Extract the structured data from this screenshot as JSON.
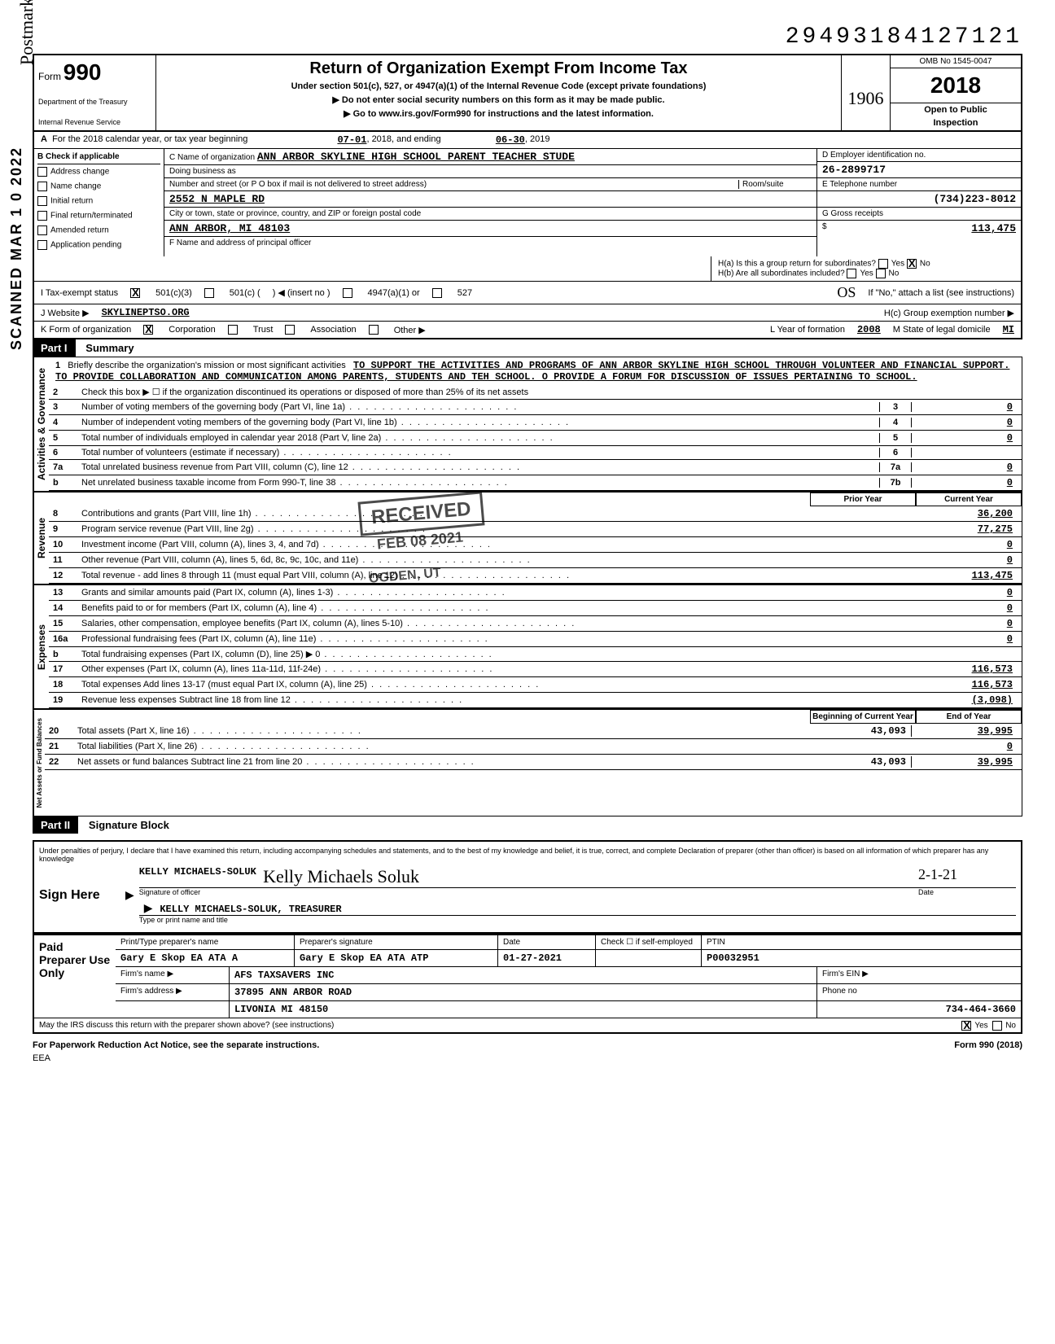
{
  "header": {
    "dln": "29493184127121",
    "form_label": "Form",
    "form_number": "990",
    "dept1": "Department of the Treasury",
    "dept2": "Internal Revenue Service",
    "main_title": "Return of Organization Exempt From Income Tax",
    "sub1": "Under section 501(c), 527, or 4947(a)(1) of the Internal Revenue Code (except private foundations)",
    "sub2": "▶ Do not enter social security numbers on this form as it may be made public.",
    "sub3": "▶ Go to www.irs.gov/Form990 for instructions and the latest information.",
    "omb": "OMB No 1545-0047",
    "year": "2018",
    "open1": "Open to Public",
    "open2": "Inspection",
    "hw_1906": "1906"
  },
  "row_a": {
    "label": "A",
    "text1": "For the 2018 calendar year, or tax year beginning",
    "begin": "07-01",
    "text2": ", 2018, and ending",
    "end": "06-30",
    "text3": ", 2019"
  },
  "col_b": {
    "hdr": "B    Check if applicable",
    "items": [
      "Address change",
      "Name change",
      "Initial return",
      "Final return/terminated",
      "Amended return",
      "Application pending"
    ]
  },
  "col_c": {
    "name_label": "C  Name of organization",
    "name": "ANN ARBOR SKYLINE HIGH SCHOOL PARENT TEACHER STUDE",
    "dba_label": "Doing business as",
    "addr_label": "Number and street (or P O box if mail is not delivered to street address)",
    "room_label": "Room/suite",
    "addr": "2552 N MAPLE RD",
    "city_label": "City or town, state or province, country, and ZIP or foreign postal code",
    "city": "ANN ARBOR, MI 48103",
    "f_label": "F  Name and address of principal officer"
  },
  "col_d": {
    "ein_label": "D   Employer identification no.",
    "ein": "26-2899717",
    "phone_label": "E   Telephone number",
    "phone": "(734)223-8012",
    "gross_label": "G   Gross receipts",
    "gross_prefix": "$",
    "gross": "113,475"
  },
  "h_section": {
    "ha_label": "H(a) Is this a group return for subordinates?",
    "hb_label": "H(b) Are all subordinates included?",
    "yes": "Yes",
    "no": "No",
    "note": "If \"No,\" attach a list (see instructions)",
    "hc_label": "H(c)   Group exemption number  ▶"
  },
  "tax_exempt": {
    "label": "I       Tax-exempt status",
    "opt1": "501(c)(3)",
    "opt2": "501(c) (",
    "insert": ")  ◀  (insert no )",
    "opt3": "4947(a)(1) or",
    "opt4": "527",
    "hw_os": "OS"
  },
  "website": {
    "label": "J       Website  ▶",
    "value": "SKYLINEPTSO.ORG"
  },
  "form_org": {
    "label": "K      Form of organization",
    "opts": [
      "Corporation",
      "Trust",
      "Association",
      "Other ▶"
    ],
    "year_label": "L  Year of formation",
    "year": "2008",
    "state_label": "M  State of legal domicile",
    "state": "MI"
  },
  "part1": {
    "part": "Part I",
    "title": "Summary",
    "line1_label": "1",
    "line1_text": "Briefly describe the organization's mission or most significant activities",
    "mission": "TO SUPPORT THE ACTIVITIES AND PROGRAMS OF ANN ARBOR SKYLINE HIGH SCHOOL THROUGH VOLUNTEER AND FINANCIAL SUPPORT.  TO PROVIDE COLLABORATION AND COMMUNICATION AMONG PARENTS, STUDENTS AND TEH SCHOOL. O PROVIDE A FORUM FOR DISCUSSION OF ISSUES PERTAINING TO SCHOOL.",
    "line2": "Check this box ▶ ☐ if the organization discontinued its operations or disposed of more than 25% of its net assets",
    "gov_label": "Activities & Governance",
    "lines_gov": [
      {
        "n": "3",
        "t": "Number of voting members of the governing body (Part VI, line 1a)",
        "ln": "3",
        "v": "0"
      },
      {
        "n": "4",
        "t": "Number of independent voting members of the governing body (Part VI, line 1b)",
        "ln": "4",
        "v": "0"
      },
      {
        "n": "5",
        "t": "Total number of individuals employed in calendar year 2018 (Part V, line 2a)",
        "ln": "5",
        "v": "0"
      },
      {
        "n": "6",
        "t": "Total number of volunteers (estimate if necessary)",
        "ln": "6",
        "v": ""
      },
      {
        "n": "7a",
        "t": "Total unrelated business revenue from Part VIII, column (C), line 12",
        "ln": "7a",
        "v": "0"
      },
      {
        "n": "b",
        "t": "Net unrelated business taxable income from Form 990-T, line 38",
        "ln": "7b",
        "v": "0"
      }
    ],
    "prior_hdr": "Prior Year",
    "curr_hdr": "Current Year",
    "rev_label": "Revenue",
    "lines_rev": [
      {
        "n": "8",
        "t": "Contributions and grants (Part VIII, line 1h)",
        "p": "",
        "c": "36,200"
      },
      {
        "n": "9",
        "t": "Program service revenue (Part VIII, line 2g)",
        "p": "",
        "c": "77,275"
      },
      {
        "n": "10",
        "t": "Investment income (Part VIII, column (A), lines 3, 4, and 7d)",
        "p": "",
        "c": "0"
      },
      {
        "n": "11",
        "t": "Other revenue (Part VIII, column (A), lines 5, 6d, 8c, 9c, 10c, and 11e)",
        "p": "",
        "c": "0"
      },
      {
        "n": "12",
        "t": "Total revenue - add lines 8 through 11 (must equal Part VIII, column (A), line 12)",
        "p": "",
        "c": "113,475"
      }
    ],
    "exp_label": "Expenses",
    "lines_exp": [
      {
        "n": "13",
        "t": "Grants and similar amounts paid (Part IX, column (A), lines 1-3)",
        "p": "",
        "c": "0"
      },
      {
        "n": "14",
        "t": "Benefits paid to or for members (Part IX, column (A), line 4)",
        "p": "",
        "c": "0"
      },
      {
        "n": "15",
        "t": "Salaries, other compensation, employee benefits (Part IX, column (A), lines 5-10)",
        "p": "",
        "c": "0"
      },
      {
        "n": "16a",
        "t": "Professional fundraising fees (Part IX, column (A), line 11e)",
        "p": "",
        "c": "0"
      },
      {
        "n": "b",
        "t": "Total fundraising expenses (Part IX, column (D), line 25)   ▶                                    0",
        "p": "",
        "c": ""
      },
      {
        "n": "17",
        "t": "Other expenses (Part IX, column (A), lines 11a-11d, 11f-24e)",
        "p": "",
        "c": "116,573"
      },
      {
        "n": "18",
        "t": "Total expenses  Add lines 13-17 (must equal Part IX, column (A), line 25)",
        "p": "",
        "c": "116,573"
      },
      {
        "n": "19",
        "t": "Revenue less expenses  Subtract line 18 from line 12",
        "p": "",
        "c": "(3,098)"
      }
    ],
    "na_label": "Net Assets or Fund Balances",
    "boy_hdr": "Beginning of Current Year",
    "eoy_hdr": "End of Year",
    "lines_na": [
      {
        "n": "20",
        "t": "Total assets (Part X, line 16)",
        "p": "43,093",
        "c": "39,995"
      },
      {
        "n": "21",
        "t": "Total liabilities (Part X, line 26)",
        "p": "",
        "c": "0"
      },
      {
        "n": "22",
        "t": "Net assets or fund balances  Subtract line 21 from line 20",
        "p": "43,093",
        "c": "39,995"
      }
    ]
  },
  "part2": {
    "part": "Part II",
    "title": "Signature Block",
    "perjury": "Under penalties of perjury, I declare that I have examined this return, including accompanying schedules and statements, and to the best of my knowledge and belief, it is true, correct, and complete  Declaration of preparer (other than officer) is based on all information of which preparer has any knowledge",
    "sign_label": "Sign Here",
    "officer_typed": "KELLY MICHAELS-SOLUK",
    "officer_sig": "Kelly Michaels Soluk",
    "sig_label": "Signature of officer",
    "date_label": "Date",
    "date": "2-1-21",
    "name_title": "KELLY MICHAELS-SOLUK, TREASURER",
    "name_title_label": "Type or print name and title"
  },
  "preparer": {
    "label": "Paid Preparer Use Only",
    "h1": "Print/Type preparer's name",
    "h2": "Preparer's signature",
    "h3": "Date",
    "h4": "Check ☐ if self-employed",
    "h5": "PTIN",
    "name": "Gary E Skop     EA  ATA  A",
    "sig": "Gary E Skop     EA  ATA  ATP",
    "date": "01-27-2021",
    "ptin": "P00032951",
    "firm_label": "Firm's name   ▶",
    "firm": "AFS TAXSAVERS INC",
    "ein_label": "Firm's EIN  ▶",
    "addr_label": "Firm's address  ▶",
    "addr1": "37895 ANN ARBOR ROAD",
    "addr2": "LIVONIA MI 48150",
    "phone_label": "Phone no",
    "phone": "734-464-3660",
    "discuss": "May the IRS discuss this return with the preparer shown above? (see instructions)",
    "yes": "Yes",
    "no": "No"
  },
  "footer": {
    "left": "For Paperwork Reduction Act Notice, see the separate instructions.",
    "mid": "EEA",
    "right": "Form 990 (2018)"
  },
  "stamps": {
    "received": "RECEIVED",
    "date": "FEB 08 2021",
    "ogden": "OGDEN, UT",
    "scanned": "SCANNED MAR 1 0 2022",
    "postmark": "Postmark missing"
  }
}
